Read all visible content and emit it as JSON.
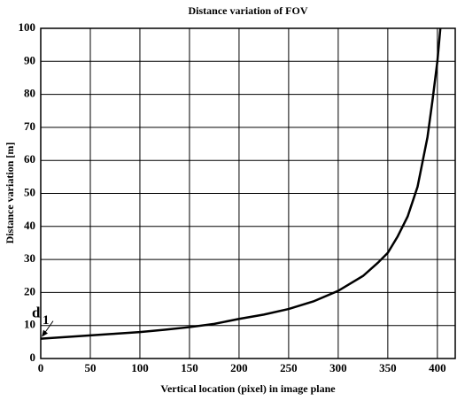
{
  "chart_data": {
    "type": "line",
    "title": "Distance variation of FOV",
    "xlabel": "Vertical location (pixel) in image plane",
    "ylabel": "Distance variation [m]",
    "annotation": {
      "text": "d",
      "subscript": "1"
    },
    "x": [
      0,
      25,
      50,
      75,
      100,
      125,
      150,
      175,
      200,
      225,
      250,
      275,
      300,
      325,
      340,
      350,
      360,
      370,
      380,
      390,
      395,
      400,
      403
    ],
    "values": [
      6,
      6.5,
      7,
      7.5,
      8,
      8.7,
      9.5,
      10.5,
      12,
      13.3,
      15,
      17.3,
      20.5,
      25,
      29,
      32,
      37,
      43,
      52,
      67,
      78,
      90,
      100
    ],
    "color": "#000000",
    "xlim": [
      0,
      418
    ],
    "ylim": [
      0,
      100
    ],
    "xticks": [
      0,
      50,
      100,
      150,
      200,
      250,
      300,
      350,
      400
    ],
    "yticks": [
      0,
      10,
      20,
      30,
      40,
      50,
      60,
      70,
      80,
      90,
      100
    ],
    "grid": true
  }
}
